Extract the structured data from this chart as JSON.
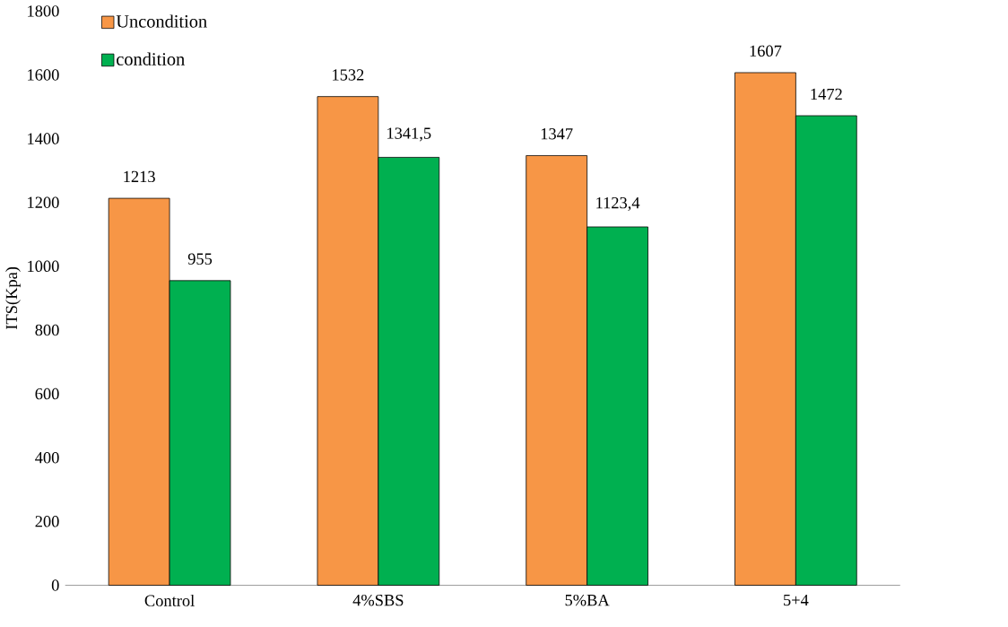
{
  "chart_data": {
    "type": "bar",
    "ylabel": "ITS(Kpa)",
    "categories": [
      "Control",
      "4%SBS",
      "5%BA",
      "5+4"
    ],
    "series": [
      {
        "name": "Uncondition",
        "color": "#f79646",
        "values": [
          1213,
          1532,
          1347,
          1607
        ],
        "value_labels": [
          "1213",
          "1532",
          "1347",
          "1607"
        ]
      },
      {
        "name": "condition",
        "color": "#00b050",
        "values": [
          955,
          1341.5,
          1123.4,
          1472
        ],
        "value_labels": [
          "955",
          "1341,5",
          "1123,4",
          "1472"
        ]
      }
    ],
    "ylim": [
      0,
      1800
    ],
    "yticks": [
      0,
      200,
      400,
      600,
      800,
      1000,
      1200,
      1400,
      1600,
      1800
    ],
    "grid": false,
    "legend": "top left"
  }
}
